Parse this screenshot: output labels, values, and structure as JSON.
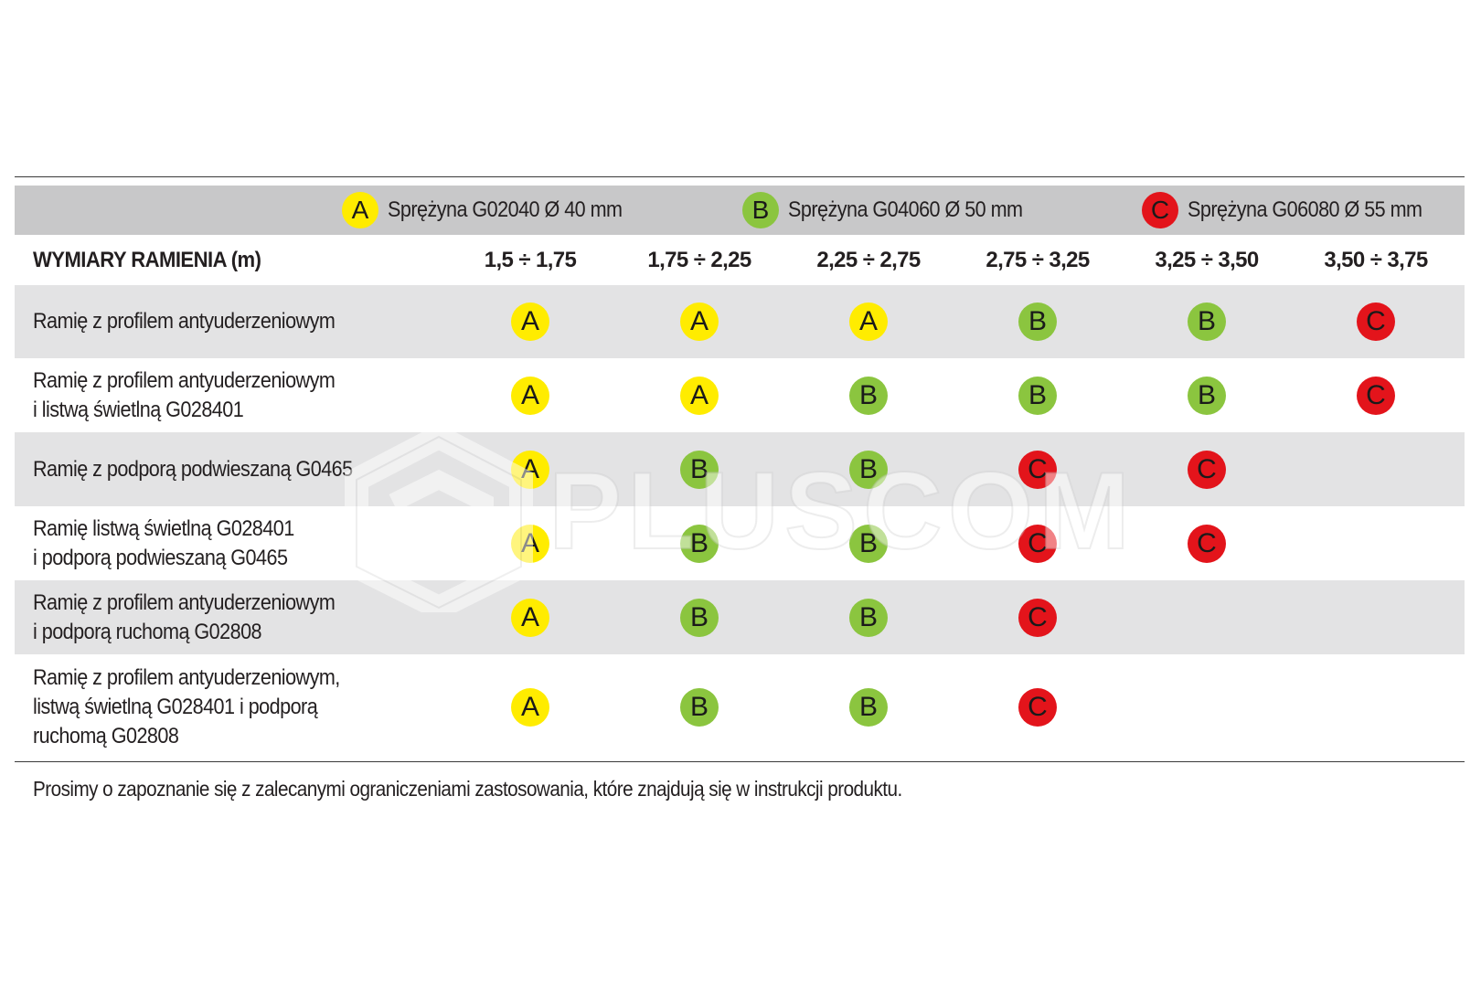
{
  "legend": [
    {
      "code": "A",
      "label": "Sprężyna G02040  Ø 40 mm",
      "color": "#ffec00"
    },
    {
      "code": "B",
      "label": "Sprężyna G04060  Ø 50 mm",
      "color": "#8bc53f"
    },
    {
      "code": "C",
      "label": "Sprężyna G06080  Ø 55 mm",
      "color": "#e3141b"
    }
  ],
  "header": {
    "title": "WYMIARY RAMIENIA (m)",
    "ranges": [
      "1,5 ÷ 1,75",
      "1,75 ÷ 2,25",
      "2,25 ÷ 2,75",
      "2,75 ÷ 3,25",
      "3,25 ÷ 3,50",
      "3,50 ÷ 3,75"
    ]
  },
  "rows": [
    {
      "label_lines": [
        "Ramię z profilem antyuderzeniowym"
      ],
      "values": [
        "A",
        "A",
        "A",
        "B",
        "B",
        "C"
      ]
    },
    {
      "label_lines": [
        "Ramię z profilem antyuderzeniowym",
        "i listwą świetlną G028401"
      ],
      "values": [
        "A",
        "A",
        "B",
        "B",
        "B",
        "C"
      ]
    },
    {
      "label_lines": [
        "Ramię z podporą podwieszaną G0465"
      ],
      "values": [
        "A",
        "B",
        "B",
        "C",
        "C",
        ""
      ]
    },
    {
      "label_lines": [
        "Ramię listwą świetlną G028401",
        "i podporą podwieszaną G0465"
      ],
      "values": [
        "A",
        "B",
        "B",
        "C",
        "C",
        ""
      ]
    },
    {
      "label_lines": [
        "Ramię z profilem antyuderzeniowym",
        "i podporą ruchomą G02808"
      ],
      "values": [
        "A",
        "B",
        "B",
        "C",
        "",
        ""
      ]
    },
    {
      "label_lines": [
        "Ramię z profilem antyuderzeniowym,",
        "listwą świetlną G028401 i podporą",
        "ruchomą G02808"
      ],
      "values": [
        "A",
        "B",
        "B",
        "C",
        "",
        ""
      ]
    }
  ],
  "footnote": "Prosimy o zapoznanie się z zalecanymi ograniczeniami zastosowania, które znajdują się w instrukcji produktu.",
  "watermark": {
    "text": "PLUSCOM",
    "icon": "hexagon-logo-icon"
  }
}
